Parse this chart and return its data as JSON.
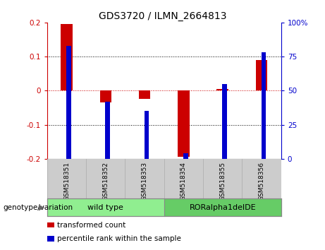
{
  "title": "GDS3720 / ILMN_2664813",
  "categories": [
    "GSM518351",
    "GSM518352",
    "GSM518353",
    "GSM518354",
    "GSM518355",
    "GSM518356"
  ],
  "red_values": [
    0.195,
    -0.035,
    -0.025,
    -0.195,
    0.005,
    0.09
  ],
  "blue_values_pct": [
    83,
    42,
    35,
    4,
    55,
    78
  ],
  "ylim_left": [
    -0.2,
    0.2
  ],
  "ylim_right": [
    0,
    100
  ],
  "yticks_left": [
    -0.2,
    -0.1,
    0.0,
    0.1,
    0.2
  ],
  "yticks_right": [
    0,
    25,
    50,
    75,
    100
  ],
  "ytick_labels_right": [
    "0",
    "25",
    "50",
    "75",
    "100%"
  ],
  "left_axis_color": "#cc0000",
  "right_axis_color": "#0000cc",
  "red_bar_width": 0.3,
  "blue_bar_width": 0.12,
  "groups": [
    {
      "label": "wild type",
      "indices": [
        0,
        1,
        2
      ],
      "color": "#90ee90"
    },
    {
      "label": "RORalpha1delDE",
      "indices": [
        3,
        4,
        5
      ],
      "color": "#66cc66"
    }
  ],
  "group_label_prefix": "genotype/variation",
  "legend": [
    {
      "label": "transformed count",
      "color": "#cc0000"
    },
    {
      "label": "percentile rank within the sample",
      "color": "#0000cc"
    }
  ],
  "background_color": "#ffffff",
  "plot_bg_color": "#ffffff",
  "tick_area_color": "#cccccc",
  "zero_line_color": "#cc0000",
  "dotted_line_color": "#000000"
}
